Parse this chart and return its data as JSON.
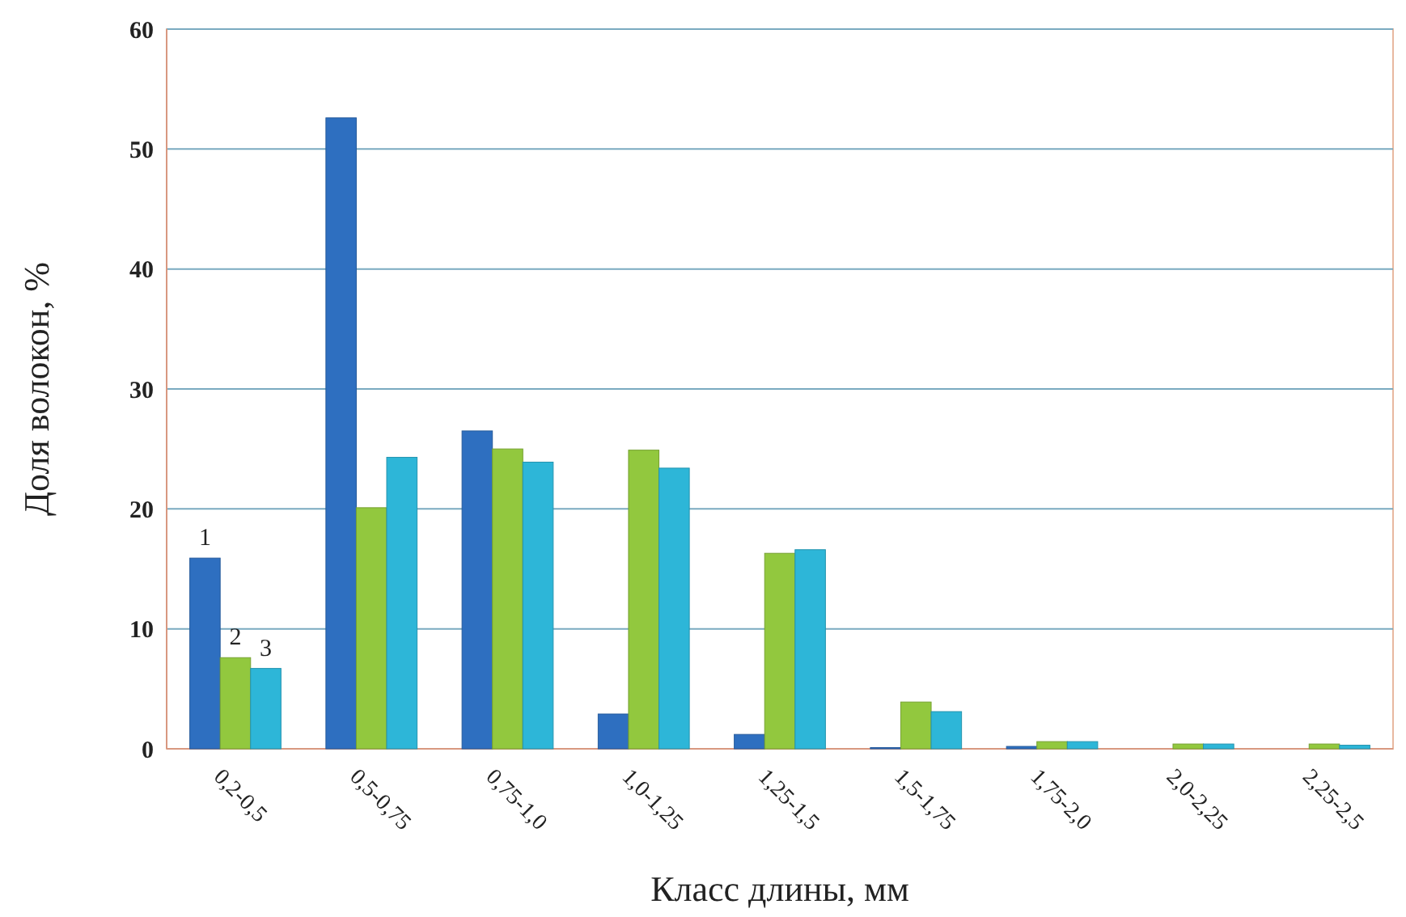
{
  "chart_data": {
    "type": "bar",
    "xlabel": "Класс длины, мм",
    "ylabel": "Доля волокон, %",
    "categories": [
      "0,2-0,5",
      "0,5-0,75",
      "0,75-1,0",
      "1,0-1,25",
      "1,25-1,5",
      "1,5-1,75",
      "1,75-2,0",
      "2,0-2,25",
      "2,25-2,5"
    ],
    "series": [
      {
        "name": "1",
        "color": "#2e6fc0",
        "values": [
          15.9,
          52.6,
          26.5,
          2.9,
          1.2,
          0.1,
          0.2,
          0,
          0
        ]
      },
      {
        "name": "2",
        "color": "#92c83e",
        "values": [
          7.6,
          20.1,
          25.0,
          24.9,
          16.3,
          3.9,
          0.6,
          0.4,
          0.4
        ]
      },
      {
        "name": "3",
        "color": "#2db6d8",
        "values": [
          6.7,
          24.3,
          23.9,
          23.4,
          16.6,
          3.1,
          0.6,
          0.4,
          0.3
        ]
      }
    ],
    "ylim": [
      0,
      60
    ],
    "yticks": [
      0,
      10,
      20,
      30,
      40,
      50,
      60
    ],
    "grid": "y"
  }
}
